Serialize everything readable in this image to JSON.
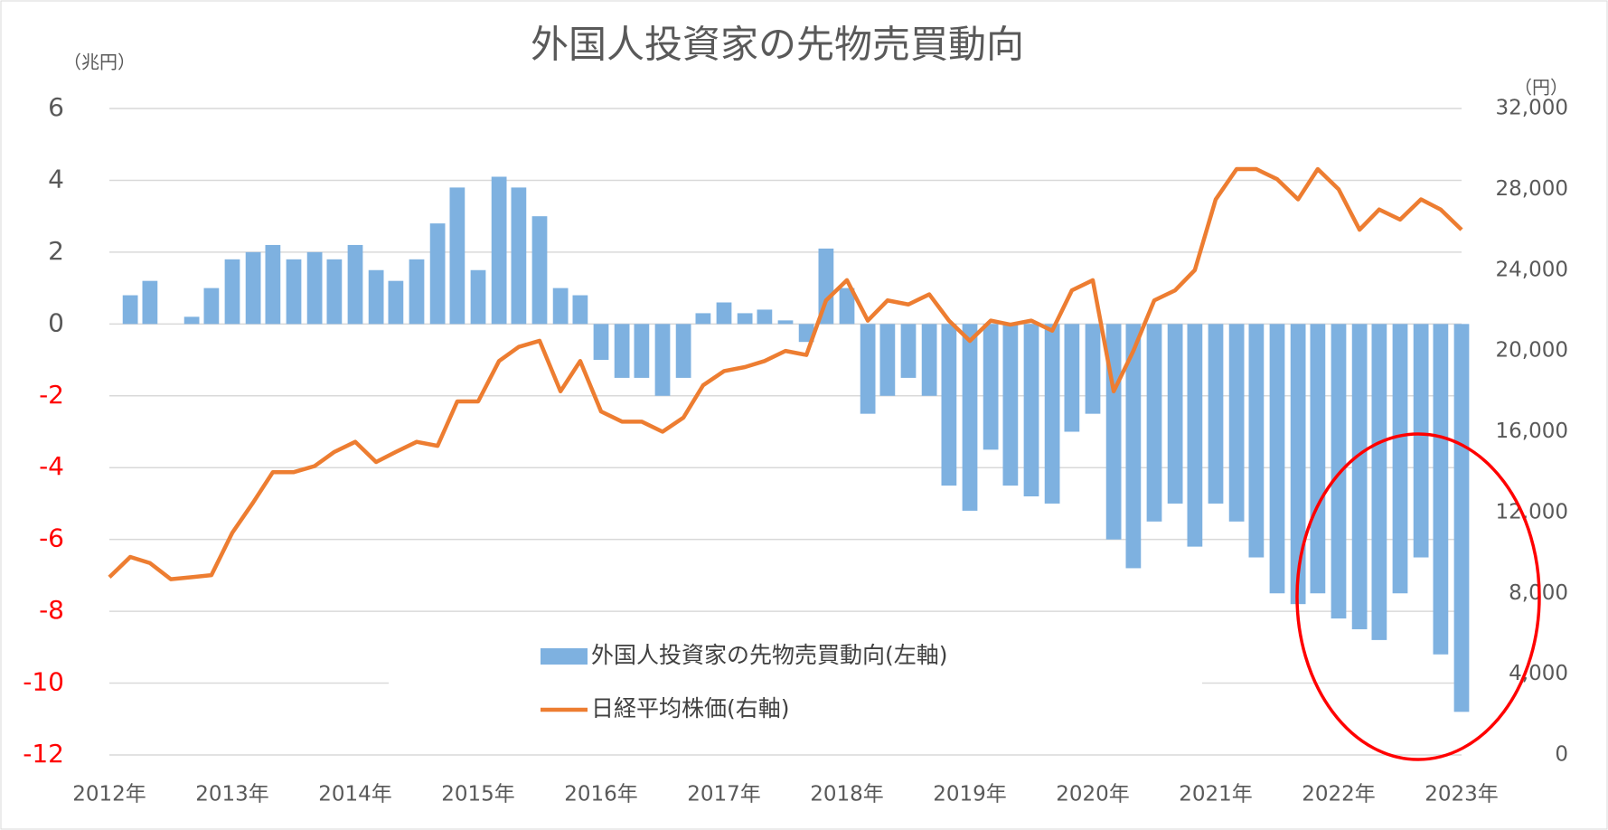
{
  "chart_data": {
    "type": "bar",
    "title": "外国人投資家の先物売買動向",
    "y_unit_label": "（兆円）",
    "y2_unit_label": "（円）",
    "x": [
      2012.0,
      2012.17,
      2012.33,
      2012.5,
      2012.67,
      2012.83,
      2013.0,
      2013.17,
      2013.33,
      2013.5,
      2013.67,
      2013.83,
      2014.0,
      2014.17,
      2014.33,
      2014.5,
      2014.67,
      2014.83,
      2015.0,
      2015.17,
      2015.33,
      2015.5,
      2015.67,
      2015.83,
      2016.0,
      2016.17,
      2016.33,
      2016.5,
      2016.67,
      2016.83,
      2017.0,
      2017.17,
      2017.33,
      2017.5,
      2017.67,
      2017.83,
      2018.0,
      2018.17,
      2018.33,
      2018.5,
      2018.67,
      2018.83,
      2019.0,
      2019.17,
      2019.33,
      2019.5,
      2019.67,
      2019.83,
      2020.0,
      2020.17,
      2020.33,
      2020.5,
      2020.67,
      2020.83,
      2021.0,
      2021.17,
      2021.33,
      2021.5,
      2021.67,
      2021.83,
      2022.0,
      2022.17,
      2022.33,
      2022.5,
      2022.67,
      2022.83,
      2023.0
    ],
    "series": [
      {
        "name": "外国人投資家の先物売買動向(左軸)",
        "type": "bar",
        "axis": "y",
        "color": "#7eb1e0",
        "values": [
          0,
          0.8,
          1.2,
          0,
          0.2,
          1.0,
          1.8,
          2.0,
          2.2,
          1.8,
          2.0,
          1.8,
          2.2,
          1.5,
          1.2,
          1.8,
          2.8,
          3.8,
          1.5,
          4.1,
          3.8,
          3.0,
          1.0,
          0.8,
          -1.0,
          -1.5,
          -1.5,
          -2.0,
          -1.5,
          0.3,
          0.6,
          0.3,
          0.4,
          0.1,
          -0.5,
          2.1,
          1.0,
          -2.5,
          -2.0,
          -1.5,
          -2.0,
          -4.5,
          -5.2,
          -3.5,
          -4.5,
          -4.8,
          -5.0,
          -3.0,
          -2.5,
          -6.0,
          -6.8,
          -5.5,
          -5.0,
          -6.2,
          -5.0,
          -5.5,
          -6.5,
          -7.5,
          -7.8,
          -7.5,
          -8.2,
          -8.5,
          -8.8,
          -7.5,
          -6.5,
          -9.2,
          -10.8
        ]
      },
      {
        "name": "日経平均株価(右軸)",
        "type": "line",
        "axis": "y2",
        "color": "#ed7d31",
        "values": [
          8800,
          9800,
          9500,
          8700,
          8800,
          8900,
          11000,
          12500,
          14000,
          14000,
          14300,
          15000,
          15500,
          14500,
          15000,
          15500,
          15300,
          17500,
          17500,
          19500,
          20200,
          20500,
          18000,
          19500,
          17000,
          16500,
          16500,
          16000,
          16700,
          18300,
          19000,
          19200,
          19500,
          20000,
          19800,
          22500,
          23500,
          21500,
          22500,
          22300,
          22800,
          21500,
          20500,
          21500,
          21300,
          21500,
          21000,
          23000,
          23500,
          18000,
          20000,
          22500,
          23000,
          24000,
          27500,
          29000,
          29000,
          28500,
          27500,
          29000,
          28000,
          26000,
          27000,
          26500,
          27500,
          27000,
          26000
        ]
      }
    ],
    "xlim": [
      2012,
      2023
    ],
    "xticks": [
      {
        "value": 2012,
        "label": "2012年"
      },
      {
        "value": 2013,
        "label": "2013年"
      },
      {
        "value": 2014,
        "label": "2014年"
      },
      {
        "value": 2015,
        "label": "2015年"
      },
      {
        "value": 2016,
        "label": "2016年"
      },
      {
        "value": 2017,
        "label": "2017年"
      },
      {
        "value": 2018,
        "label": "2018年"
      },
      {
        "value": 2019,
        "label": "2019年"
      },
      {
        "value": 2020,
        "label": "2020年"
      },
      {
        "value": 2021,
        "label": "2021年"
      },
      {
        "value": 2022,
        "label": "2022年"
      },
      {
        "value": 2023,
        "label": "2023年"
      }
    ],
    "ylim": [
      -12,
      6
    ],
    "yticks": [
      6,
      4,
      2,
      0,
      -2,
      -4,
      -6,
      -8,
      -10,
      -12
    ],
    "y2lim": [
      0,
      32000
    ],
    "y2ticks": [
      {
        "value": 32000,
        "label": "32,000"
      },
      {
        "value": 28000,
        "label": "28,000"
      },
      {
        "value": 24000,
        "label": "24,000"
      },
      {
        "value": 20000,
        "label": "20,000"
      },
      {
        "value": 16000,
        "label": "16,000"
      },
      {
        "value": 12000,
        "label": "12,000"
      },
      {
        "value": 8000,
        "label": "8,000"
      },
      {
        "value": 4000,
        "label": "4,000"
      },
      0
    ],
    "grid": true,
    "negative_tick_color": "#ff0000",
    "legend": "center"
  }
}
